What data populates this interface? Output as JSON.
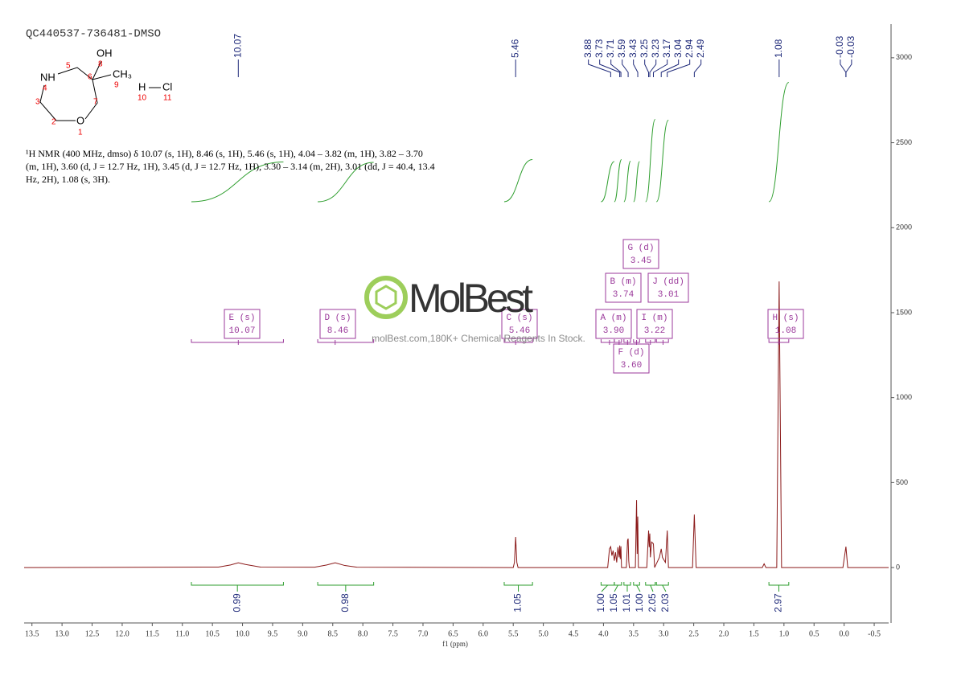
{
  "structure": {
    "atoms": [
      "OH",
      "8",
      "5",
      "6",
      "CH₃",
      "9",
      "NH",
      "4",
      "3",
      "7",
      "2",
      "O",
      "1",
      "H",
      "Cl",
      "10",
      "11"
    ]
  },
  "description": [
    "¹H NMR (400 MHz, dmso) δ 10.07 (s, 1H), 8.46 (s, 1H), 5.46 (s, 1H), 4.04 – 3.82 (m, 1H), 3.82 – 3.70",
    "(m, 1H), 3.60 (d, J = 12.7 Hz, 1H), 3.45 (d, J = 12.7 Hz, 1H), 3.30 – 3.14 (m, 2H), 3.01 (dd, J = 40.4, 13.4",
    "Hz, 2H), 1.08 (s, 3H)."
  ],
  "watermark": {
    "brand": "MolBest",
    "tagline": "molBest.com,180K+ Chemical Reagents In Stock."
  },
  "chart_data": {
    "type": "nmr",
    "title": "QC440537-736481-DMSO",
    "x_label": "f1 (ppm)",
    "xlim": [
      13.63,
      -0.74
    ],
    "xticks": [
      13.5,
      {
        "value": 13,
        "label": "13.0"
      },
      12.5,
      {
        "value": 12,
        "label": "12.0"
      },
      11.5,
      {
        "value": 11,
        "label": "11.0"
      },
      10.5,
      {
        "value": 10,
        "label": "10.0"
      },
      9.5,
      {
        "value": 9,
        "label": "9.0"
      },
      8.5,
      {
        "value": 8,
        "label": "8.0"
      },
      7.5,
      {
        "value": 7,
        "label": "7.0"
      },
      6.5,
      {
        "value": 6,
        "label": "6.0"
      },
      5.5,
      {
        "value": 5,
        "label": "5.0"
      },
      4.5,
      {
        "value": 4,
        "label": "4.0"
      },
      3.5,
      {
        "value": 3,
        "label": "3.0"
      },
      2.5,
      {
        "value": 2,
        "label": "2.0"
      },
      1.5,
      {
        "value": 1,
        "label": "1.0"
      },
      0.5,
      {
        "value": 0,
        "label": "0.0"
      },
      -0.5
    ],
    "ylim": [
      -326,
      3198
    ],
    "yticks": [
      0,
      500,
      1000,
      1500,
      2000,
      2500,
      3000
    ],
    "spectrum": {
      "color": "#8b1a1a",
      "x": [
        13.63,
        10.4,
        10.2,
        10.07,
        9.95,
        9.7,
        8.8,
        8.6,
        8.46,
        8.3,
        8.1,
        5.5,
        5.48,
        5.46,
        5.44,
        5.42,
        3.93,
        3.9,
        3.88,
        3.86,
        3.84,
        3.82,
        3.8,
        3.78,
        3.76,
        3.74,
        3.73,
        3.72,
        3.71,
        3.7,
        3.62,
        3.6,
        3.59,
        3.58,
        3.57,
        3.47,
        3.45,
        3.44,
        3.43,
        3.42,
        3.28,
        3.25,
        3.24,
        3.23,
        3.22,
        3.2,
        3.17,
        3.15,
        3.07,
        3.04,
        3.02,
        2.97,
        2.94,
        2.92,
        2.52,
        2.49,
        2.46,
        1.36,
        1.33,
        1.3,
        1.12,
        1.08,
        1.04,
        0.02,
        -0.03,
        -0.06,
        -0.74
      ],
      "y": [
        0,
        3,
        15,
        28,
        18,
        3,
        2,
        15,
        28,
        12,
        2,
        0,
        30,
        180,
        30,
        0,
        0,
        110,
        123,
        70,
        100,
        40,
        90,
        30,
        120,
        60,
        130,
        50,
        125,
        0,
        0,
        160,
        170,
        40,
        0,
        0,
        397,
        80,
        300,
        0,
        0,
        218,
        120,
        200,
        60,
        150,
        140,
        0,
        60,
        110,
        60,
        30,
        218,
        0,
        0,
        312,
        0,
        0,
        22,
        0,
        0,
        1684,
        0,
        0,
        123,
        0,
        0
      ]
    },
    "peak_labels": {
      "color": "#1f2a7a",
      "values": [
        10.07,
        5.46,
        3.88,
        3.73,
        3.71,
        3.59,
        3.43,
        3.25,
        3.23,
        3.17,
        3.04,
        2.94,
        2.49,
        1.08,
        -0.03,
        -0.03
      ]
    },
    "multiplet_color": "#9b3a9b",
    "multiplets": [
      {
        "label": "E (s)",
        "shift": 10.07,
        "range": [
          10.85,
          9.32
        ]
      },
      {
        "label": "D (s)",
        "shift": 8.46,
        "range": [
          8.75,
          7.82
        ]
      },
      {
        "label": "C (s)",
        "shift": 5.46,
        "range": [
          5.65,
          5.18
        ]
      },
      {
        "label": "A (m)",
        "shift": {
          "value": 3.9,
          "label": "3.90"
        },
        "range": [
          4.04,
          3.82
        ]
      },
      {
        "label": "B (m)",
        "shift": 3.74,
        "range": [
          3.82,
          3.7
        ]
      },
      {
        "label": "F (d)",
        "shift": {
          "value": 3.6,
          "label": "3.60"
        },
        "range": [
          3.66,
          3.55
        ]
      },
      {
        "label": "G (d)",
        "shift": 3.45,
        "range": [
          3.5,
          3.4
        ]
      },
      {
        "label": "I (m)",
        "shift": 3.22,
        "range": [
          3.3,
          3.14
        ]
      },
      {
        "label": "J (dd)",
        "shift": 3.01,
        "range": [
          3.12,
          2.92
        ]
      },
      {
        "label": "H (s)",
        "shift": 1.08,
        "range": [
          1.25,
          0.92
        ]
      }
    ],
    "integrals": {
      "color": "#2e9e2e",
      "values": [
        0.99,
        0.98,
        1.05,
        {
          "value": 1,
          "label": "1.00"
        },
        1.05,
        1.01,
        {
          "value": 1,
          "label": "1.00"
        },
        2.05,
        2.03,
        2.97
      ],
      "ranges": [
        [
          10.85,
          9.32
        ],
        [
          8.75,
          7.82
        ],
        [
          5.65,
          5.18
        ],
        [
          4.04,
          3.82
        ],
        [
          3.82,
          3.7
        ],
        [
          3.66,
          3.55
        ],
        [
          3.5,
          3.4
        ],
        [
          3.3,
          3.14
        ],
        [
          3.12,
          2.92
        ],
        [
          1.25,
          0.92
        ]
      ]
    }
  }
}
